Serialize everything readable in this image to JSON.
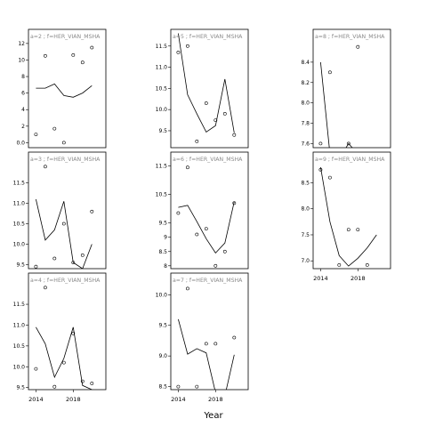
{
  "chart_data": {
    "type": "scatter",
    "layout": "3 columns, 3 rows, small multiples (last column has 2 rows)",
    "xlabel": "Year",
    "panels": [
      {
        "strip": "a=2 ; f=HER_VIAN_MSHA",
        "xlim": [
          2013.2,
          2021.5
        ],
        "ylim": [
          -0.6,
          12.2
        ],
        "x_ticks": [
          2014,
          2018
        ],
        "show_x_ticks": false,
        "y_ticks": [
          0,
          2,
          4,
          6,
          8,
          10,
          12
        ],
        "points": [
          [
            2014,
            1.0
          ],
          [
            2015,
            10.5
          ],
          [
            2016,
            1.7
          ],
          [
            2017,
            0.0
          ],
          [
            2018,
            10.6
          ],
          [
            2019,
            9.7
          ],
          [
            2020,
            11.5
          ]
        ],
        "line": [
          [
            2014,
            6.6
          ],
          [
            2015,
            6.6
          ],
          [
            2016,
            7.1
          ],
          [
            2017,
            5.7
          ],
          [
            2018,
            5.5
          ],
          [
            2019,
            6.0
          ],
          [
            2020,
            6.9
          ]
        ]
      },
      {
        "strip": "a=3 ; f=HER_VIAN_MSHA",
        "xlim": [
          2013.2,
          2021.5
        ],
        "ylim": [
          9.4,
          11.95
        ],
        "x_ticks": [
          2014,
          2018
        ],
        "show_x_ticks": false,
        "y_ticks": [
          9.5,
          10.0,
          10.5,
          11.0,
          11.5
        ],
        "points": [
          [
            2014,
            9.45
          ],
          [
            2015,
            11.9
          ],
          [
            2016,
            9.65
          ],
          [
            2017,
            10.5
          ],
          [
            2018,
            9.55
          ],
          [
            2019,
            9.73
          ],
          [
            2020,
            10.8
          ]
        ],
        "line": [
          [
            2014,
            11.1
          ],
          [
            2015,
            10.1
          ],
          [
            2016,
            10.35
          ],
          [
            2017,
            11.05
          ],
          [
            2018,
            9.55
          ],
          [
            2019,
            9.4
          ],
          [
            2020,
            10.0
          ]
        ]
      },
      {
        "strip": "a=4 ; f=HER_VIAN_MSHA",
        "xlim": [
          2013.2,
          2021.5
        ],
        "ylim": [
          9.45,
          11.95
        ],
        "x_ticks": [
          2014,
          2018
        ],
        "show_x_ticks": true,
        "y_ticks": [
          9.5,
          10.0,
          10.5,
          11.0,
          11.5
        ],
        "points": [
          [
            2014,
            9.95
          ],
          [
            2015,
            11.9
          ],
          [
            2016,
            9.52
          ],
          [
            2017,
            10.1
          ],
          [
            2018,
            10.8
          ],
          [
            2019,
            9.65
          ],
          [
            2020,
            9.6
          ]
        ],
        "line": [
          [
            2014,
            10.95
          ],
          [
            2015,
            10.55
          ],
          [
            2016,
            9.75
          ],
          [
            2017,
            10.2
          ],
          [
            2018,
            10.95
          ],
          [
            2019,
            9.55
          ],
          [
            2020,
            9.45
          ]
        ]
      },
      {
        "strip": "a=5 ; f=HER_VIAN_MSHA",
        "xlim": [
          2013.2,
          2021.5
        ],
        "ylim": [
          9.1,
          11.6
        ],
        "x_ticks": [
          2014,
          2018
        ],
        "show_x_ticks": false,
        "y_ticks": [
          9.5,
          10.0,
          10.5,
          11.0,
          11.5
        ],
        "points": [
          [
            2014,
            11.35
          ],
          [
            2015,
            11.5
          ],
          [
            2016,
            9.25
          ],
          [
            2017,
            10.15
          ],
          [
            2018,
            9.75
          ],
          [
            2019,
            9.9
          ],
          [
            2020,
            9.4
          ]
        ],
        "line": [
          [
            2014,
            11.8
          ],
          [
            2015,
            10.35
          ],
          [
            2016,
            9.9
          ],
          [
            2017,
            9.47
          ],
          [
            2018,
            9.62
          ],
          [
            2019,
            10.72
          ],
          [
            2020,
            9.45
          ]
        ]
      },
      {
        "strip": "a=6 ; f=HER_VIAN_MSHA",
        "xlim": [
          2013.2,
          2021.5
        ],
        "ylim": [
          7.9,
          11.55
        ],
        "x_ticks": [
          2014,
          2018
        ],
        "show_x_ticks": false,
        "y_ticks": [
          8.0,
          8.5,
          9.0,
          9.5,
          10.5,
          11.5
        ],
        "points": [
          [
            2014,
            9.85
          ],
          [
            2015,
            11.45
          ],
          [
            2016,
            9.1
          ],
          [
            2017,
            9.3
          ],
          [
            2018,
            8.0
          ],
          [
            2019,
            8.5
          ],
          [
            2020,
            10.2
          ]
        ],
        "line": [
          [
            2014,
            10.05
          ],
          [
            2015,
            10.12
          ],
          [
            2016,
            9.55
          ],
          [
            2017,
            8.95
          ],
          [
            2018,
            8.45
          ],
          [
            2019,
            8.8
          ],
          [
            2020,
            10.25
          ]
        ]
      },
      {
        "strip": "a=7 ; f=HER_VIAN_MSHA",
        "xlim": [
          2013.2,
          2021.5
        ],
        "ylim": [
          8.45,
          10.15
        ],
        "x_ticks": [
          2014,
          2018
        ],
        "show_x_ticks": true,
        "y_ticks": [
          8.5,
          9.0,
          9.5,
          10.0
        ],
        "points": [
          [
            2014,
            8.5
          ],
          [
            2015,
            10.1
          ],
          [
            2016,
            8.5
          ],
          [
            2017,
            9.2
          ],
          [
            2018,
            9.2
          ],
          [
            2019,
            8.3
          ],
          [
            2020,
            9.3
          ]
        ],
        "line": [
          [
            2014,
            9.6
          ],
          [
            2015,
            9.03
          ],
          [
            2016,
            9.12
          ],
          [
            2017,
            9.05
          ],
          [
            2018,
            8.4
          ],
          [
            2019,
            8.35
          ],
          [
            2020,
            9.02
          ]
        ]
      },
      {
        "strip": "a=8 ; f=HER_VIAN_MSHA",
        "xlim": [
          2013.2,
          2021.5
        ],
        "ylim": [
          7.56,
          8.6
        ],
        "x_ticks": [
          2014,
          2018
        ],
        "show_x_ticks": false,
        "y_ticks": [
          7.6,
          7.8,
          8.0,
          8.2,
          8.4
        ],
        "points": [
          [
            2014,
            7.6
          ],
          [
            2015,
            8.3
          ],
          [
            2017,
            7.6
          ],
          [
            2018,
            8.55
          ]
        ],
        "line": [
          [
            2014,
            8.4
          ],
          [
            2015,
            7.5
          ],
          [
            2016,
            7.45
          ],
          [
            2017,
            7.6
          ],
          [
            2018,
            7.5
          ]
        ]
      },
      {
        "strip": "a=9 ; f=HER_VIAN_MSHA",
        "xlim": [
          2013.2,
          2021.5
        ],
        "ylim": [
          6.85,
          8.85
        ],
        "x_ticks": [
          2014,
          2018
        ],
        "show_x_ticks": true,
        "y_ticks": [
          7.0,
          7.5,
          8.0,
          8.5
        ],
        "points": [
          [
            2014,
            8.75
          ],
          [
            2015,
            8.6
          ],
          [
            2016,
            6.92
          ],
          [
            2017,
            7.6
          ],
          [
            2018,
            7.6
          ],
          [
            2019,
            6.92
          ]
        ],
        "line": [
          [
            2014,
            8.8
          ],
          [
            2015,
            7.75
          ],
          [
            2016,
            7.1
          ],
          [
            2017,
            6.9
          ],
          [
            2018,
            7.05
          ],
          [
            2019,
            7.25
          ],
          [
            2020,
            7.5
          ]
        ]
      }
    ]
  }
}
